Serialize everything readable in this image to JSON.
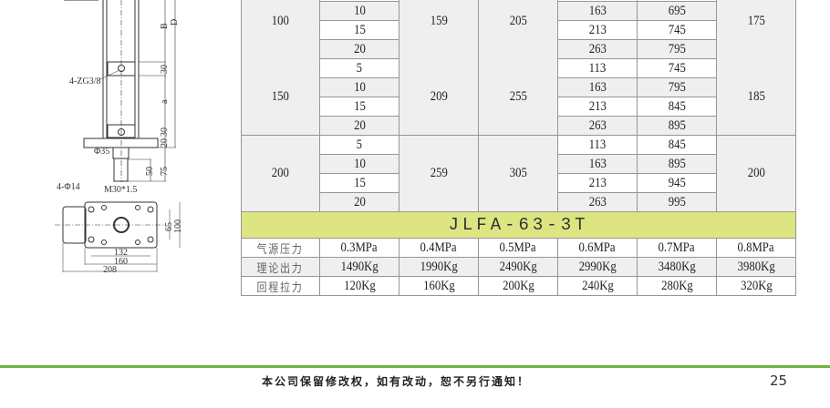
{
  "drawing": {
    "labels": {
      "B": "B",
      "D": "D",
      "a": "a",
      "d30_top": "30",
      "d30_bot": "30",
      "d20": "20",
      "d75": "75",
      "d50": "50",
      "port": "4-ZG3/8",
      "rod_dia": "Φ35",
      "thread": "M30*1.5",
      "holes": "4-Φ14",
      "d65": "65",
      "d100": "100",
      "d132": "132",
      "d160": "160",
      "d208": "208"
    }
  },
  "table": {
    "groups": [
      {
        "bore": "100",
        "strokes": [
          "10",
          "15",
          "20"
        ],
        "c3": "159",
        "c4": "205",
        "c5": [
          "163",
          "213",
          "263"
        ],
        "c6": [
          "695",
          "745",
          "795"
        ],
        "c7": "175"
      },
      {
        "bore": "150",
        "strokes": [
          "5",
          "10",
          "15",
          "20"
        ],
        "c3": "209",
        "c4": "255",
        "c5": [
          "113",
          "163",
          "213",
          "263"
        ],
        "c6": [
          "745",
          "795",
          "845",
          "895"
        ],
        "c7": "185"
      },
      {
        "bore": "200",
        "strokes": [
          "5",
          "10",
          "15",
          "20"
        ],
        "c3": "259",
        "c4": "305",
        "c5": [
          "113",
          "163",
          "213",
          "263"
        ],
        "c6": [
          "845",
          "895",
          "945",
          "995"
        ],
        "c7": "200"
      }
    ],
    "model": "JLFA-63-3T",
    "spec_rows": [
      {
        "label": "气源压力",
        "values": [
          "0.3MPa",
          "0.4MPa",
          "0.5MPa",
          "0.6MPa",
          "0.7MPa",
          "0.8MPa"
        ]
      },
      {
        "label": "理论出力",
        "values": [
          "1490Kg",
          "1990Kg",
          "2490Kg",
          "2990Kg",
          "3480Kg",
          "3980Kg"
        ]
      },
      {
        "label": "回程拉力",
        "values": [
          "120Kg",
          "160Kg",
          "200Kg",
          "240Kg",
          "280Kg",
          "320Kg"
        ]
      }
    ]
  },
  "footer": {
    "notice": "本公司保留修改权，如有改动，恕不另行通知！",
    "page": "25",
    "line_color": "#6db33f"
  },
  "colors": {
    "banner": "#dce582",
    "stripe": "#efefef"
  }
}
